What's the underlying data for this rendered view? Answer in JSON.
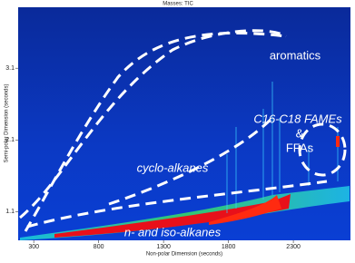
{
  "chart_data": {
    "type": "heatmap",
    "title": "Masses:  TIC",
    "x_label": "Non-polar Dimension (seconds)",
    "y_label": "Semi-polar Dimension (seconds)",
    "xlim": [
      180,
      2740
    ],
    "xticks": [
      300,
      800,
      1300,
      1800,
      2300
    ],
    "ylim": [
      0.7,
      3.95
    ],
    "yticks": [
      1.1,
      2.1,
      3.1
    ],
    "annotations": [
      "aromatics",
      "C16-C18 FAMEs",
      "&",
      "FFAs",
      "cyclo-alkanes",
      "n- and iso-alkanes"
    ]
  }
}
